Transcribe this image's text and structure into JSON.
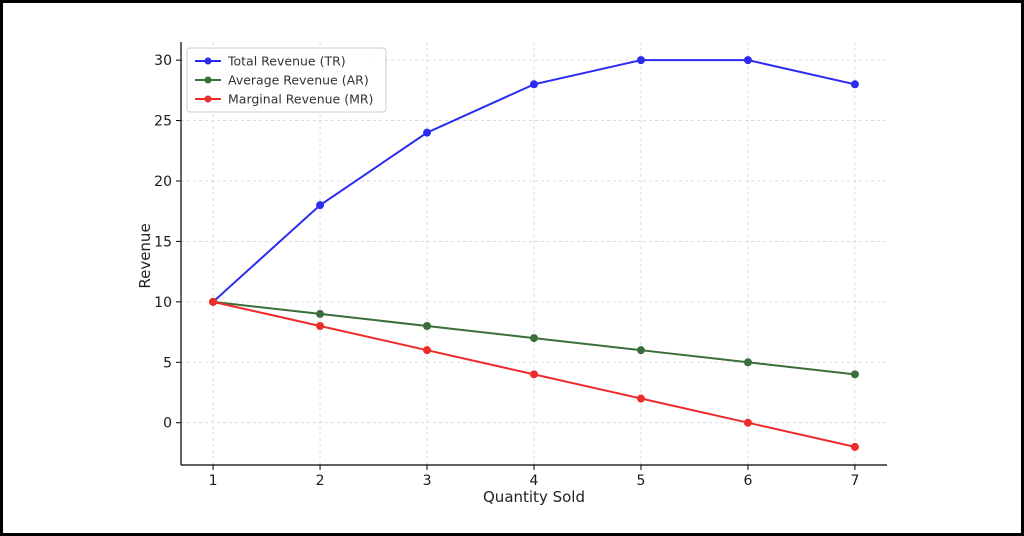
{
  "chart_data": {
    "type": "line",
    "title": "",
    "xlabel": "Quantity Sold",
    "ylabel": "Revenue",
    "x": [
      1,
      2,
      3,
      4,
      5,
      6,
      7
    ],
    "xticks": [
      "1",
      "2",
      "3",
      "4",
      "5",
      "6",
      "7"
    ],
    "yticks": [
      "0",
      "5",
      "10",
      "15",
      "20",
      "25",
      "30"
    ],
    "xlim": [
      0.7,
      7.3
    ],
    "ylim": [
      -3.5,
      31.5
    ],
    "grid": true,
    "legend_position": "top-left",
    "series": [
      {
        "name": "Total Revenue (TR)",
        "color": "#2b2bf2",
        "values": [
          10,
          18,
          24,
          28,
          30,
          30,
          28
        ]
      },
      {
        "name": "Average Revenue (AR)",
        "color": "#3a6e3a",
        "values": [
          10,
          9,
          8,
          7,
          6,
          5,
          4
        ]
      },
      {
        "name": "Marginal Revenue (MR)",
        "color": "#ee2b2b",
        "values": [
          10,
          8,
          6,
          4,
          2,
          0,
          -2
        ]
      }
    ]
  }
}
